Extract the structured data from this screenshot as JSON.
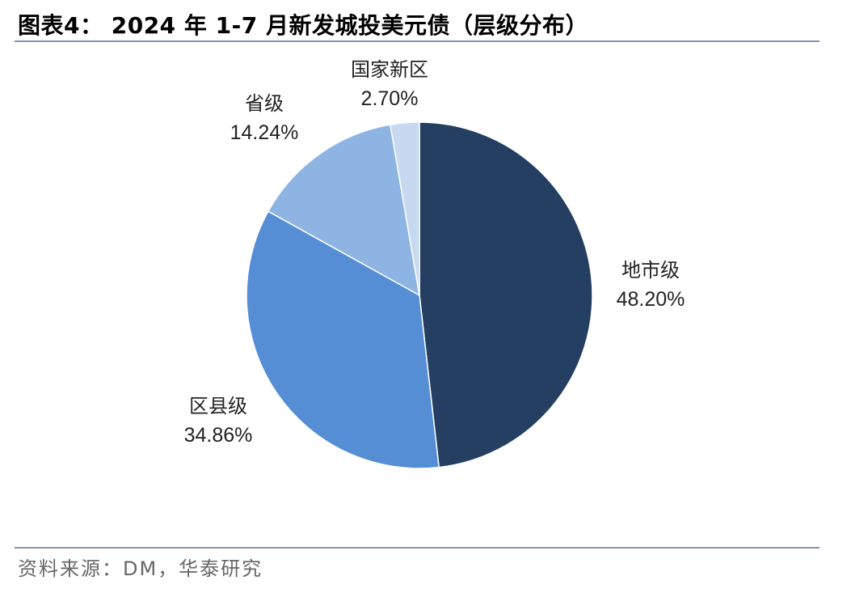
{
  "title": "图表4：   2024 年 1-7 月新发城投美元债（层级分布）",
  "source": "资料来源：DM，华泰研究",
  "chart_data": {
    "type": "pie",
    "title": "图表4：   2024 年 1-7 月新发城投美元债（层级分布）",
    "start": "12 o'clock",
    "direction": "clockwise",
    "legend": "none",
    "slices": [
      {
        "name": "地市级",
        "value": 48.2,
        "label": "48.20%",
        "color": "#243f62"
      },
      {
        "name": "区县级",
        "value": 34.86,
        "label": "34.86%",
        "color": "#558ed5"
      },
      {
        "name": "省级",
        "value": 14.24,
        "label": "14.24%",
        "color": "#8eb4e3"
      },
      {
        "name": "国家新区",
        "value": 2.7,
        "label": "2.70%",
        "color": "#c6d9f1"
      }
    ]
  }
}
